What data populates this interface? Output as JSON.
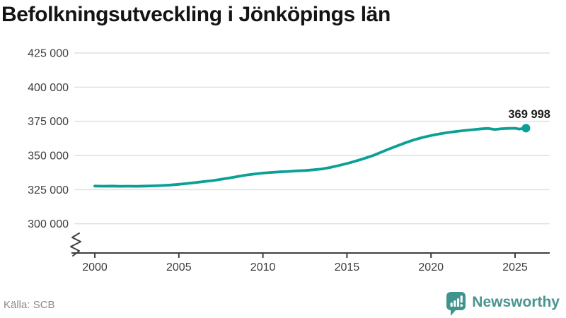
{
  "header": {
    "title": "Befolkningsutveckling i Jönköpings län"
  },
  "footer": {
    "source": "Källa: SCB",
    "brand": "Newsworthy"
  },
  "colors": {
    "line": "#0aa096",
    "marker": "#0aa096",
    "grid": "#e0e0e0",
    "axis": "#3f3f3f",
    "tick_text": "#3d3d3d",
    "end_label_text": "#1c1c1c",
    "title_text": "#141414",
    "source_text": "#8a8a8a",
    "brand_teal": "#3f948d"
  },
  "chart_data": {
    "type": "line",
    "title": "Befolkningsutveckling i Jönköpings län",
    "xlabel": "",
    "ylabel": "",
    "grid": true,
    "legend": false,
    "axis_break_bottom_left": true,
    "x_ticks": [
      {
        "value": 2000,
        "label": "2000"
      },
      {
        "value": 2005,
        "label": "2005"
      },
      {
        "value": 2010,
        "label": "2010"
      },
      {
        "value": 2015,
        "label": "2015"
      },
      {
        "value": 2020,
        "label": "2020"
      },
      {
        "value": 2025,
        "label": "2025"
      }
    ],
    "y_ticks": [
      {
        "value": 425000,
        "label": "425 000"
      },
      {
        "value": 400000,
        "label": "400 000"
      },
      {
        "value": 375000,
        "label": "375 000"
      },
      {
        "value": 350000,
        "label": "350 000"
      },
      {
        "value": 325000,
        "label": "325 000"
      },
      {
        "value": 300000,
        "label": "300 000"
      }
    ],
    "xlim": [
      1998.8,
      2027.0
    ],
    "ylim_displayed": [
      300000,
      425000
    ],
    "end_label": "369 998",
    "end_value": 369998,
    "series": [
      {
        "name": "Jönköpings län",
        "points": [
          [
            2000.0,
            327600
          ],
          [
            2000.5,
            327500
          ],
          [
            2001.0,
            327600
          ],
          [
            2001.5,
            327450
          ],
          [
            2002.0,
            327500
          ],
          [
            2002.5,
            327450
          ],
          [
            2003.0,
            327600
          ],
          [
            2003.5,
            327750
          ],
          [
            2004.0,
            328000
          ],
          [
            2004.5,
            328400
          ],
          [
            2005.0,
            328900
          ],
          [
            2005.5,
            329500
          ],
          [
            2006.0,
            330200
          ],
          [
            2006.5,
            330900
          ],
          [
            2007.0,
            331600
          ],
          [
            2007.5,
            332500
          ],
          [
            2008.0,
            333500
          ],
          [
            2008.5,
            334600
          ],
          [
            2009.0,
            335600
          ],
          [
            2009.5,
            336400
          ],
          [
            2010.0,
            337100
          ],
          [
            2010.5,
            337600
          ],
          [
            2011.0,
            338000
          ],
          [
            2011.5,
            338300
          ],
          [
            2012.0,
            338700
          ],
          [
            2012.5,
            339000
          ],
          [
            2013.0,
            339500
          ],
          [
            2013.5,
            340100
          ],
          [
            2014.0,
            341200
          ],
          [
            2014.5,
            342600
          ],
          [
            2015.0,
            344100
          ],
          [
            2015.5,
            345800
          ],
          [
            2016.0,
            347700
          ],
          [
            2016.5,
            349700
          ],
          [
            2017.0,
            352200
          ],
          [
            2017.5,
            354700
          ],
          [
            2018.0,
            357100
          ],
          [
            2018.5,
            359400
          ],
          [
            2019.0,
            361500
          ],
          [
            2019.5,
            363200
          ],
          [
            2020.0,
            364600
          ],
          [
            2020.5,
            365800
          ],
          [
            2021.0,
            366800
          ],
          [
            2021.5,
            367600
          ],
          [
            2022.0,
            368300
          ],
          [
            2022.5,
            368900
          ],
          [
            2023.0,
            369500
          ],
          [
            2023.4,
            369800
          ],
          [
            2023.8,
            369000
          ],
          [
            2024.2,
            369600
          ],
          [
            2024.6,
            369800
          ],
          [
            2025.0,
            369900
          ],
          [
            2025.25,
            369350
          ],
          [
            2025.65,
            369998
          ]
        ]
      }
    ]
  }
}
